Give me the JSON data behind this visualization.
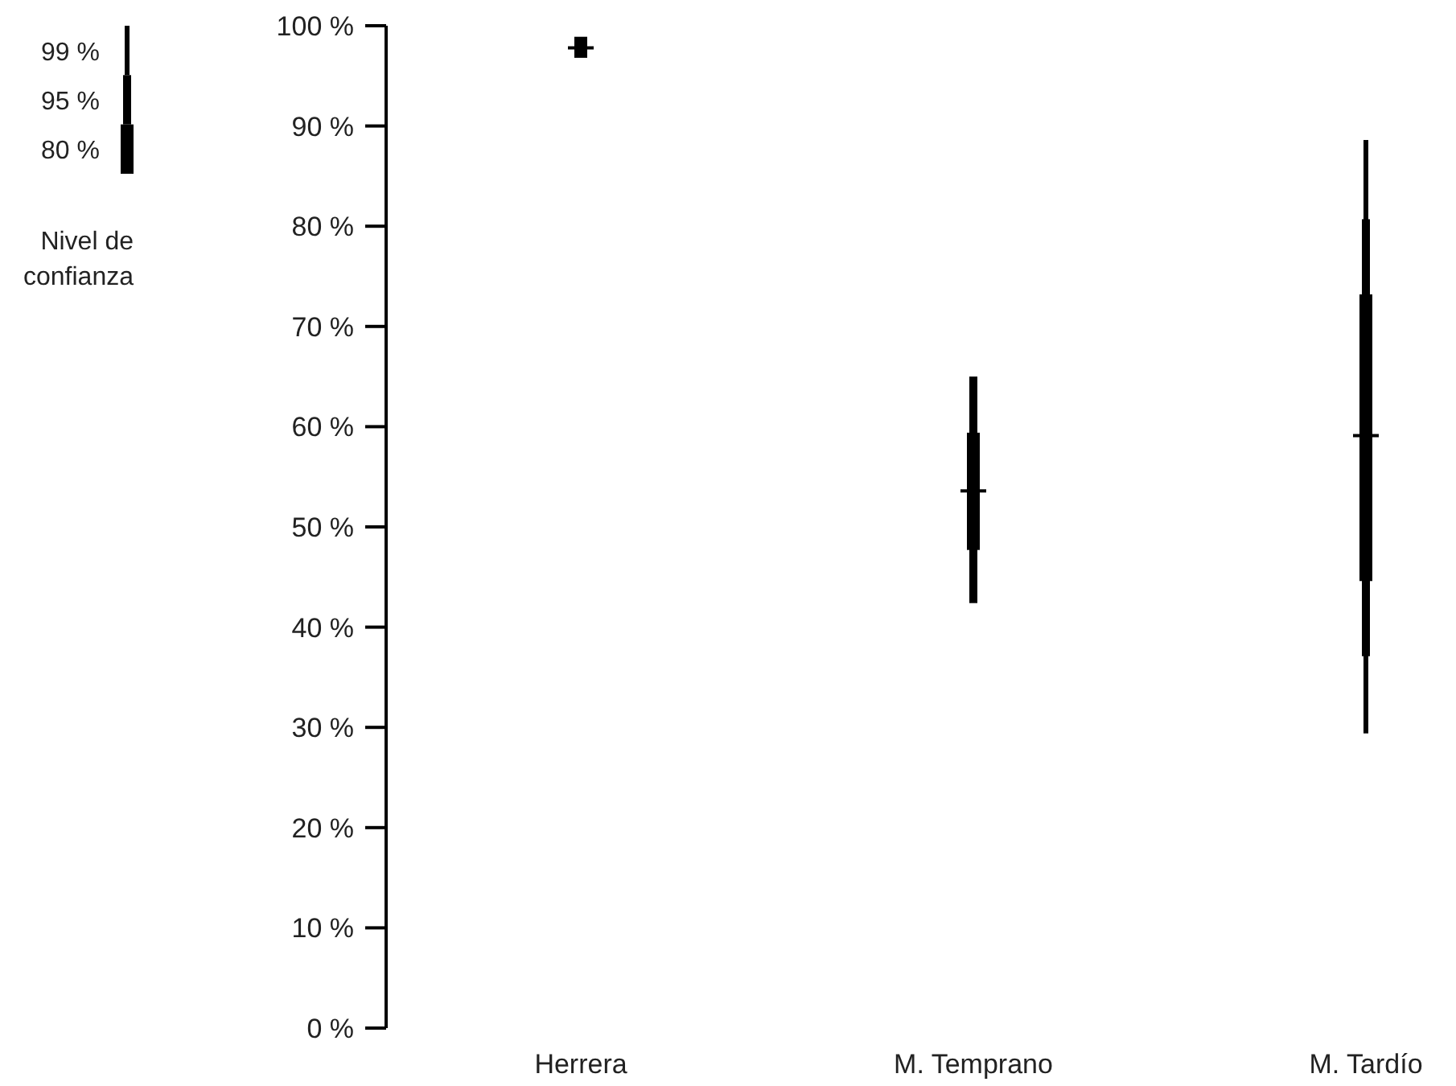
{
  "chart_data": {
    "type": "bar",
    "categories": [
      "Herrera",
      "M. Temprano",
      "M. Tardío"
    ],
    "series": [
      {
        "name": "99 %",
        "color": "#000000",
        "base": [
          null,
          null,
          29.4
        ],
        "values": [
          null,
          null,
          59.2
        ]
      },
      {
        "name": "95 %",
        "color": "#000000",
        "base": [
          null,
          42.4,
          37.1
        ],
        "values": [
          null,
          22.6,
          43.6
        ]
      },
      {
        "name": "80 %",
        "color": "#000000",
        "base": [
          96.8,
          47.7,
          44.6
        ],
        "values": [
          2.1,
          11.7,
          28.6
        ]
      },
      {
        "type": "scatter",
        "marker": "cross",
        "color": "#000000",
        "x": [
          "Herrera",
          "M. Temprano",
          "M. Tardío"
        ],
        "values": [
          97.8,
          53.6,
          59.1
        ]
      }
    ],
    "legend_title": "Nivel de confianza",
    "legend": "top left",
    "ylim": [
      0,
      100
    ],
    "yticks": [
      {
        "value": 0,
        "label": "0 %"
      },
      {
        "value": 10,
        "label": "10 %"
      },
      {
        "value": 20,
        "label": "20 %"
      },
      {
        "value": 30,
        "label": "30 %"
      },
      {
        "value": 40,
        "label": "40 %"
      },
      {
        "value": 50,
        "label": "50 %"
      },
      {
        "value": 60,
        "label": "60 %"
      },
      {
        "value": 70,
        "label": "70 %"
      },
      {
        "value": 80,
        "label": "80 %"
      },
      {
        "value": 90,
        "label": "90 %"
      },
      {
        "value": 100,
        "label": "100 %"
      }
    ]
  }
}
